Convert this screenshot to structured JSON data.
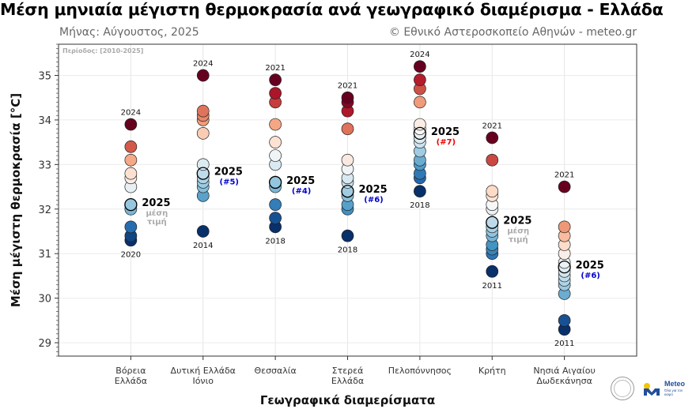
{
  "title": "Μέση μηνιαία μέγιστη θερμοκρασία ανά γεωγραφικό διαμέρισμα - Ελλάδα",
  "subtitle_left": "Μήνας: Αύγουστος, 2025",
  "subtitle_right": "© Εθνικό Αστεροσκοπείο Αθηνών - meteo.gr",
  "logos": {
    "meteo_word": "Meteo",
    "meteo_tagline": "Όλα για τον καιρό"
  },
  "chart_data": {
    "type": "scatter",
    "period_label": "Περίοδος: [2010-2025]",
    "xlabel": "Γεωγραφικά διαμερίσματα",
    "ylabel": "Μέση μέγιστη θερμοκρασία [°C]",
    "ylim": [
      28.7,
      35.7
    ],
    "yticks": [
      29,
      30,
      31,
      32,
      33,
      34,
      35
    ],
    "grid": true,
    "categories": [
      "Βόρεια\nΕλλάδα",
      "Δυτική Ελλάδα\nΙόνιο",
      "Θεσσαλία",
      "Στερεά\nΕλλάδα",
      "Πελοπόννησος",
      "Κρήτη",
      "Νησιά Αιγαίου\nΔωδεκάνησα"
    ],
    "regions": [
      {
        "values": [
          33.9,
          33.4,
          33.1,
          32.8,
          32.7,
          32.5,
          32.1,
          32.0,
          31.6,
          31.4,
          31.3
        ],
        "current": 32.1,
        "max_year": "2024",
        "min_year": "2020",
        "current_year": "2025",
        "note": "μέση\nτιμή",
        "note_color": "#aaaaaa"
      },
      {
        "values": [
          35.0,
          34.2,
          34.1,
          34.0,
          33.7,
          33.0,
          32.8,
          32.7,
          32.6,
          32.5,
          32.3,
          31.5
        ],
        "current": 32.8,
        "max_year": "2024",
        "min_year": "2014",
        "current_year": "2025",
        "note": "(#5)",
        "note_color": "#0000cc"
      },
      {
        "values": [
          34.9,
          34.6,
          34.4,
          33.9,
          33.5,
          33.2,
          33.0,
          32.6,
          32.5,
          32.1,
          31.8,
          31.6
        ],
        "current": 32.6,
        "max_year": "2021",
        "min_year": "2018",
        "current_year": "2025",
        "note": "(#4)",
        "note_color": "#0000cc"
      },
      {
        "values": [
          34.5,
          34.4,
          34.2,
          33.8,
          33.1,
          32.9,
          32.7,
          32.6,
          32.4,
          32.3,
          32.1,
          32.0,
          31.4
        ],
        "current": 32.4,
        "max_year": "2021",
        "min_year": "2018",
        "current_year": "2025",
        "note": "(#6)",
        "note_color": "#0000cc"
      },
      {
        "values": [
          35.2,
          34.9,
          34.7,
          34.4,
          33.9,
          33.8,
          33.7,
          33.6,
          33.5,
          33.3,
          33.1,
          33.0,
          32.8,
          32.7,
          32.4
        ],
        "current": 33.7,
        "max_year": "2024",
        "min_year": "2018",
        "current_year": "2025",
        "note": "(#7)",
        "note_color": "#ee0000"
      },
      {
        "values": [
          33.6,
          33.1,
          32.4,
          32.3,
          32.1,
          32.0,
          31.7,
          31.6,
          31.5,
          31.4,
          31.2,
          31.1,
          31.0,
          30.6
        ],
        "current": 31.7,
        "max_year": "2021",
        "min_year": "2011",
        "current_year": "2025",
        "note": "μέση\nτιμή",
        "note_color": "#aaaaaa"
      },
      {
        "values": [
          32.5,
          31.6,
          31.4,
          31.2,
          31.0,
          30.8,
          30.7,
          30.6,
          30.5,
          30.4,
          30.3,
          30.1,
          29.5,
          29.3
        ],
        "current": 30.7,
        "max_year": "2021",
        "min_year": "2011",
        "current_year": "2025",
        "note": "(#6)",
        "note_color": "#0000cc"
      }
    ]
  }
}
